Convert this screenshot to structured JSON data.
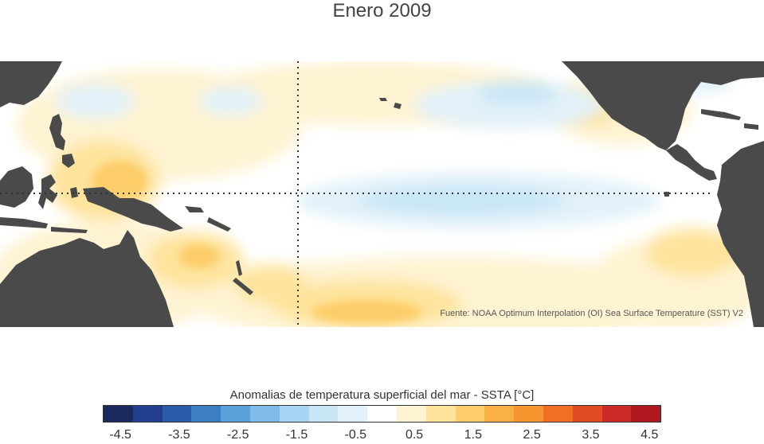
{
  "title": "Enero 2009",
  "source_note": "Fuente: NOAA Optimum Interpolation (OI) Sea Surface Temperature (SST) V2",
  "colorbar": {
    "label": "Anomalias de temperatura superficial del mar - SSTA  [°C]",
    "ticks": [
      "-4.5",
      "-3.5",
      "-2.5",
      "-1.5",
      "-0.5",
      "0.5",
      "1.5",
      "2.5",
      "3.5",
      "4.5"
    ],
    "range": [
      -4.5,
      4.5
    ],
    "colors": [
      "#1b2a5e",
      "#213f8c",
      "#2a5aa8",
      "#3c7fc0",
      "#5aa2da",
      "#7fbde8",
      "#a6d6f3",
      "#c8e6f6",
      "#e2f1f9",
      "#ffffff",
      "#fef3d2",
      "#fee39b",
      "#fdcd6b",
      "#fbb043",
      "#f8952e",
      "#f06f25",
      "#e04b24",
      "#cc2a26",
      "#b0181f"
    ]
  },
  "map": {
    "land_color": "#4a4a4a",
    "grid_line_color": "#333333",
    "gridlines": [
      "equator",
      "date-line"
    ]
  }
}
